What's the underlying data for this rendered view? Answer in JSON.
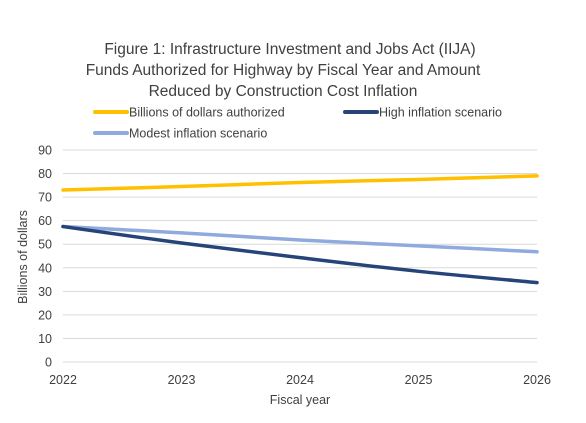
{
  "chart_data": {
    "type": "line",
    "title_lines": [
      "Figure 1: Infrastructure Investment and Jobs Act (IIJA)",
      "Funds Authorized for Highway by Fiscal Year and Amount",
      "Reduced by Construction Cost Inflation"
    ],
    "xlabel": "Fiscal year",
    "ylabel": "Billions of dollars",
    "x": [
      "2022",
      "2023",
      "2024",
      "2025",
      "2026"
    ],
    "ylim": [
      0,
      90
    ],
    "yticks": [
      "0",
      "10",
      "20",
      "30",
      "40",
      "50",
      "60",
      "70",
      "80",
      "90"
    ],
    "grid": true,
    "legend_position": "top",
    "series": [
      {
        "name": "Billions of dollars authorized",
        "color": "#FFC000",
        "values": [
          73,
          74.5,
          76.2,
          77.5,
          79
        ]
      },
      {
        "name": "High inflation scenario",
        "color": "#264478",
        "values": [
          57.5,
          50.5,
          44.3,
          38.5,
          33.7
        ]
      },
      {
        "name": "Modest inflation scenario",
        "color": "#8FAADC",
        "values": [
          57.5,
          54.8,
          51.8,
          49.3,
          46.8
        ]
      }
    ]
  }
}
